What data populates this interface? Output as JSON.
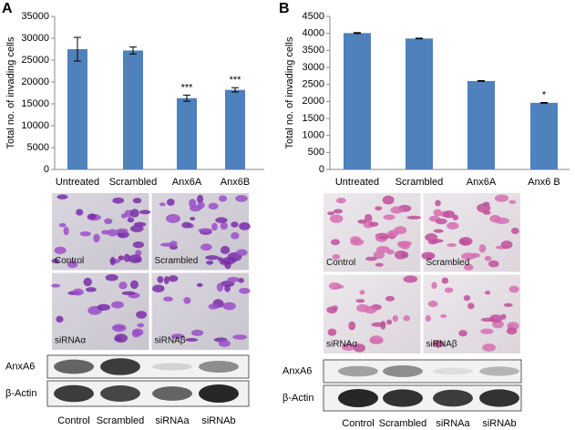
{
  "chart_data": [
    {
      "type": "bar",
      "ylabel": "Total no. of invading cells",
      "categories": [
        "Untreated",
        "Scrambled",
        "Anx6A",
        "Anx6B"
      ],
      "values": [
        27500,
        27200,
        16300,
        18200
      ],
      "errors": [
        2700,
        800,
        700,
        500
      ],
      "color": "#4f81bd",
      "ylim": [
        0,
        35000
      ],
      "yticks": [
        0,
        5000,
        10000,
        15000,
        20000,
        25000,
        30000,
        35000
      ],
      "annotations": [
        {
          "category": "Anx6A",
          "text": "***"
        },
        {
          "category": "Anx6B",
          "text": "***"
        }
      ]
    },
    {
      "type": "bar",
      "ylabel": "Total no. of invading cells",
      "categories": [
        "Untreated",
        "Scrambled",
        "Anx6A",
        "Anx6 B"
      ],
      "values": [
        4010,
        3850,
        2600,
        1960
      ],
      "errors": [
        15,
        10,
        10,
        10
      ],
      "color": "#4f81bd",
      "ylim": [
        0,
        4500
      ],
      "yticks": [
        0,
        500,
        1000,
        1500,
        2000,
        2500,
        3000,
        3500,
        4000,
        4500
      ],
      "annotations": [
        {
          "category": "Anx6 B",
          "text": "*"
        }
      ]
    }
  ],
  "panels": [
    {
      "label": "A",
      "images": [
        "Control",
        "Scrambled",
        "siRNAα",
        "siRNAβ"
      ],
      "blot_rows": [
        "AnxA6",
        "β-Actin"
      ],
      "lanes": [
        "Control",
        "Scrambled",
        "siRNAa",
        "siRNAb"
      ]
    },
    {
      "label": "B",
      "images": [
        "Control",
        "Scrambled",
        "siRNAα",
        "siRNAβ"
      ],
      "blot_rows": [
        "AnxA6",
        "β-Actin"
      ],
      "lanes": [
        "Control",
        "Scrambled",
        "siRNAa",
        "siRNAb"
      ]
    }
  ]
}
